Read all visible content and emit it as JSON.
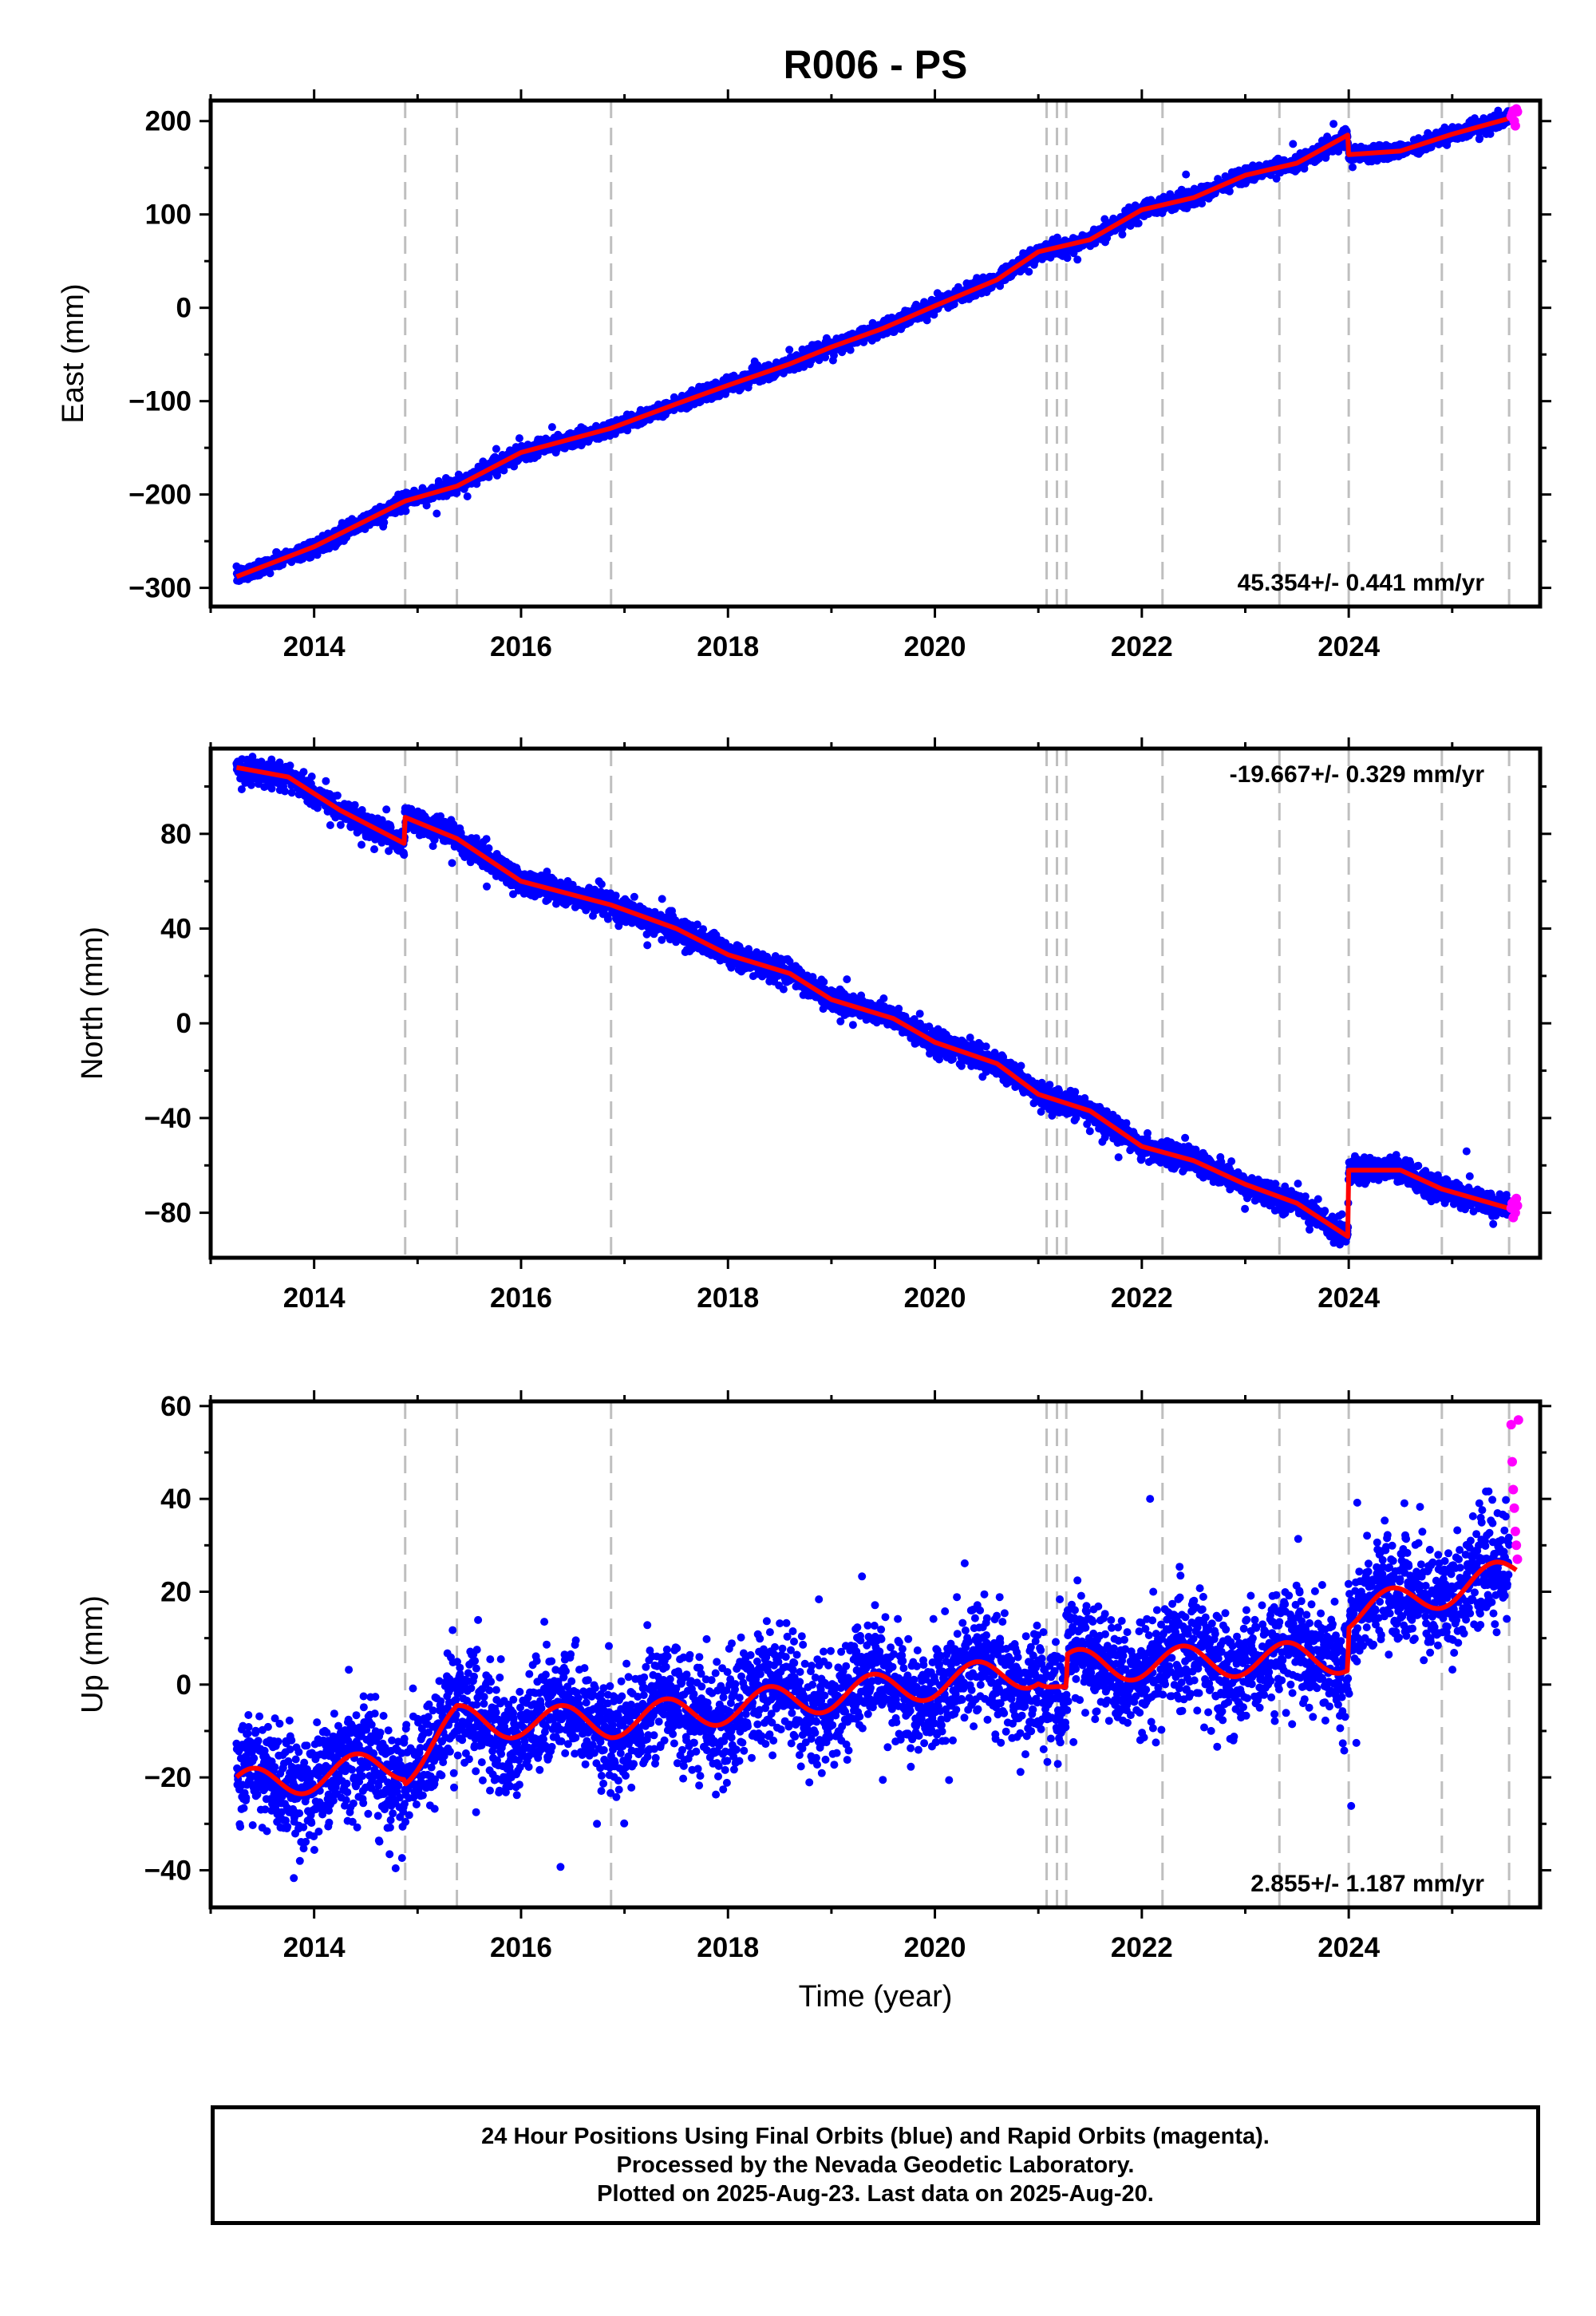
{
  "title": "R006 - PS",
  "colors": {
    "final_orbits": "#0000ff",
    "rapid_orbits": "#ff00ff",
    "model_fit": "#ff0000",
    "event_lines": "#bfbfbf"
  },
  "chart_data": [
    {
      "type": "scatter",
      "component": "east",
      "ylabel": "East (mm)",
      "xlabel": "",
      "xlim": [
        2013.0,
        2025.85
      ],
      "ylim": [
        -320,
        222
      ],
      "xticks": [
        2014,
        2016,
        2018,
        2020,
        2022,
        2024
      ],
      "yticks": [
        -300,
        -200,
        -100,
        0,
        100,
        200
      ],
      "event_lines": [
        2014.88,
        2015.38,
        2016.87,
        2021.08,
        2021.18,
        2021.27,
        2022.2,
        2023.33,
        2024.0,
        2024.9,
        2025.55
      ],
      "rate_annotation": "45.354+/- 0.441 mm/yr",
      "rate_annotation_position": "bottom-right",
      "fit_line": {
        "x": [
          2013.25,
          2014.0,
          2014.88,
          2015.38,
          2016.0,
          2016.87,
          2017.5,
          2018.0,
          2018.6,
          2019.0,
          2019.5,
          2020.0,
          2020.6,
          2021.0,
          2021.5,
          2022.0,
          2022.5,
          2023.0,
          2023.5,
          2023.99,
          2024.0,
          2024.5,
          2025.0,
          2025.62
        ],
        "y": [
          -288,
          -256,
          -207,
          -191,
          -155,
          -129,
          -103,
          -83,
          -60,
          -42,
          -22,
          2,
          30,
          60,
          73,
          105,
          118,
          142,
          155,
          185,
          164,
          168,
          186,
          205
        ]
      },
      "final_orbits_series": {
        "name": "Final Orbits",
        "x_range": [
          2013.25,
          2025.55
        ],
        "spread_mm": 4
      },
      "rapid_orbits_series": {
        "name": "Rapid Orbits",
        "x": [
          2025.57,
          2025.58,
          2025.59,
          2025.6,
          2025.61,
          2025.62,
          2025.63
        ],
        "y": [
          205,
          208,
          211,
          200,
          195,
          213,
          210
        ]
      }
    },
    {
      "type": "scatter",
      "component": "north",
      "ylabel": "North (mm)",
      "xlabel": "",
      "xlim": [
        2013.0,
        2025.85
      ],
      "ylim": [
        -99,
        116
      ],
      "xticks": [
        2014,
        2016,
        2018,
        2020,
        2022,
        2024
      ],
      "yticks": [
        -80,
        -40,
        0,
        40,
        80
      ],
      "event_lines": [
        2014.88,
        2015.38,
        2016.87,
        2021.08,
        2021.18,
        2021.27,
        2022.2,
        2023.33,
        2024.0,
        2024.9,
        2025.55
      ],
      "rate_annotation": "-19.667+/- 0.329 mm/yr",
      "rate_annotation_position": "top-right",
      "fit_line": {
        "x": [
          2013.25,
          2013.75,
          2014.25,
          2014.87,
          2014.88,
          2015.38,
          2016.0,
          2016.87,
          2017.5,
          2018.0,
          2018.6,
          2019.0,
          2019.6,
          2020.0,
          2020.6,
          2021.0,
          2021.5,
          2022.0,
          2022.5,
          2023.0,
          2023.5,
          2023.99,
          2024.0,
          2024.5,
          2024.9,
          2025.62
        ],
        "y": [
          108,
          104,
          90,
          76,
          87,
          78,
          60,
          50,
          40,
          29,
          21,
          10,
          2,
          -8,
          -17,
          -30,
          -37,
          -52,
          -58,
          -68,
          -76,
          -90,
          -62,
          -62,
          -70,
          -79
        ]
      },
      "final_orbits_series": {
        "name": "Final Orbits",
        "x_range": [
          2013.25,
          2025.55
        ],
        "spread_mm": 2.5
      },
      "rapid_orbits_series": {
        "name": "Rapid Orbits",
        "x": [
          2025.57,
          2025.58,
          2025.59,
          2025.6,
          2025.61,
          2025.62,
          2025.63
        ],
        "y": [
          -78,
          -76,
          -82,
          -75,
          -80,
          -74,
          -77
        ]
      }
    },
    {
      "type": "scatter",
      "component": "up",
      "ylabel": "Up (mm)",
      "xlabel": "Time (year)",
      "xlim": [
        2013.0,
        2025.85
      ],
      "ylim": [
        -48,
        61
      ],
      "xticks": [
        2014,
        2016,
        2018,
        2020,
        2022,
        2024
      ],
      "yticks": [
        -40,
        -20,
        0,
        20,
        40,
        60
      ],
      "event_lines": [
        2014.88,
        2015.38,
        2016.87,
        2021.08,
        2021.18,
        2021.27,
        2022.2,
        2023.33,
        2024.0,
        2024.9,
        2025.55
      ],
      "rate_annotation": "2.855+/- 1.187 mm/yr",
      "rate_annotation_position": "bottom-right",
      "fit_line": {
        "trend_points_x": [
          2013.25,
          2014.87,
          2014.88,
          2015.38,
          2016.87,
          2021.0,
          2021.08,
          2021.27,
          2021.28,
          2023.99,
          2024.0,
          2025.62
        ],
        "trend_points_y": [
          -22,
          -17,
          -18,
          -8,
          -8,
          3,
          1,
          -3,
          4,
          6,
          15,
          24
        ],
        "seasonal_amplitude_mm": 3.5
      },
      "final_orbits_series": {
        "name": "Final Orbits",
        "x_range": [
          2013.25,
          2025.55
        ],
        "spread_mm": 6
      },
      "rapid_orbits_series": {
        "name": "Rapid Orbits",
        "x": [
          2025.57,
          2025.58,
          2025.59,
          2025.6,
          2025.61,
          2025.62,
          2025.63,
          2025.64
        ],
        "y": [
          56,
          48,
          42,
          38,
          33,
          30,
          27,
          57
        ]
      }
    }
  ],
  "caption": {
    "line1": "24 Hour Positions Using Final Orbits (blue) and Rapid Orbits (magenta).",
    "line2": "Processed by the Nevada Geodetic Laboratory.",
    "line3": "Plotted on 2025-Aug-23. Last data on 2025-Aug-20."
  }
}
